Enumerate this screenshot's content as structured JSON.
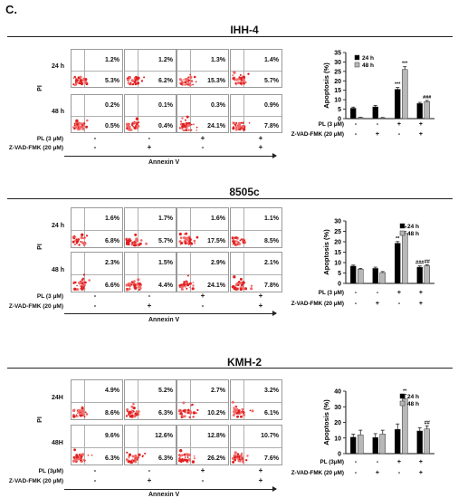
{
  "panel_label": "C.",
  "panels": [
    {
      "title": "IHH-4",
      "row_labels": [
        "24 h",
        "48 h"
      ],
      "y_axis": "PI",
      "x_axis": "Annexin V",
      "flow_percent": [
        [
          [
            "1.2%",
            "5.3%"
          ],
          [
            "1.2%",
            "6.2%"
          ],
          [
            "1.3%",
            "15.3%"
          ],
          [
            "1.4%",
            "5.7%"
          ]
        ],
        [
          [
            "0.2%",
            "0.5%"
          ],
          [
            "0.1%",
            "0.4%"
          ],
          [
            "0.3%",
            "24.1%"
          ],
          [
            "0.9%",
            "7.8%"
          ]
        ]
      ],
      "treatments": [
        {
          "label": "PL (3 μM)",
          "signs": [
            "-",
            "-",
            "+",
            "+"
          ]
        },
        {
          "label": "Z-VAD-FMK (20 μM)",
          "signs": [
            "-",
            "+",
            "-",
            "+"
          ]
        }
      ]
    },
    {
      "title": "8505c",
      "row_labels": [
        "24 h",
        "48 h"
      ],
      "y_axis": "PI",
      "x_axis": "Annexin V",
      "flow_percent": [
        [
          [
            "1.6%",
            "6.8%"
          ],
          [
            "1.7%",
            "5.7%"
          ],
          [
            "1.6%",
            "17.5%"
          ],
          [
            "1.1%",
            "8.5%"
          ]
        ],
        [
          [
            "2.3%",
            "6.6%"
          ],
          [
            "1.5%",
            "4.4%"
          ],
          [
            "2.9%",
            "24.1%"
          ],
          [
            "2.1%",
            "7.8%"
          ]
        ]
      ],
      "treatments": [
        {
          "label": "PL (3 μM)",
          "signs": [
            "-",
            "-",
            "+",
            "+"
          ]
        },
        {
          "label": "Z-VAD-FMK (20 μM)",
          "signs": [
            "-",
            "+",
            "-",
            "+"
          ]
        }
      ]
    },
    {
      "title": "KMH-2",
      "row_labels": [
        "24H",
        "48H"
      ],
      "y_axis": "PI",
      "x_axis": "Annexin V",
      "flow_percent": [
        [
          [
            "4.9%",
            "8.6%"
          ],
          [
            "5.2%",
            "6.3%"
          ],
          [
            "2.7%",
            "10.2%"
          ],
          [
            "3.2%",
            "6.1%"
          ]
        ],
        [
          [
            "9.6%",
            "6.3%"
          ],
          [
            "12.6%",
            "6.3%"
          ],
          [
            "12.8%",
            "26.2%"
          ],
          [
            "10.7%",
            "7.6%"
          ]
        ]
      ],
      "treatments": [
        {
          "label": "PL (3μM)",
          "signs": [
            "-",
            "-",
            "+",
            "+"
          ]
        },
        {
          "label": "Z-VAD-FMK (20 μM)",
          "signs": [
            "-",
            "+",
            "-",
            "+"
          ]
        }
      ]
    }
  ],
  "chart_data": [
    {
      "type": "bar",
      "title": "",
      "xlabel": "",
      "ylabel": "Apoptosis (%)",
      "ylim": [
        0,
        35
      ],
      "yticks": [
        "0",
        "5",
        "10",
        "15",
        "20",
        "25",
        "30",
        "35"
      ],
      "legend_position": "top-left",
      "categories": [
        "1",
        "2",
        "3",
        "4"
      ],
      "series": [
        {
          "name": "24 h",
          "color": "#000000",
          "values": [
            5.5,
            6.2,
            15.5,
            8.0
          ],
          "errors": [
            0.6,
            0.8,
            1.0,
            0.6
          ],
          "annotations": [
            "",
            "",
            "***",
            ""
          ]
        },
        {
          "name": "48 h",
          "color": "#b8b8b8",
          "values": [
            0.5,
            0.4,
            26.0,
            9.0
          ],
          "errors": [
            0.2,
            0.2,
            1.5,
            0.6
          ],
          "annotations": [
            "",
            "",
            "***",
            "###"
          ]
        }
      ],
      "treatments": [
        {
          "label": "PL (3 μM)",
          "signs": [
            "-",
            "-",
            "+",
            "+"
          ]
        },
        {
          "label": "Z-VAD-FMK (20 μM)",
          "signs": [
            "-",
            "+",
            "-",
            "+"
          ]
        }
      ]
    },
    {
      "type": "bar",
      "title": "",
      "xlabel": "",
      "ylabel": "Apoptosis (%)",
      "ylim": [
        0,
        30
      ],
      "yticks": [
        "0",
        "5",
        "10",
        "15",
        "20",
        "25",
        "30"
      ],
      "legend_position": "top-right",
      "categories": [
        "1",
        "2",
        "3",
        "4"
      ],
      "series": [
        {
          "name": "24 h",
          "color": "#000000",
          "values": [
            8.3,
            7.2,
            19.3,
            7.8
          ],
          "errors": [
            0.5,
            0.6,
            0.8,
            0.6
          ],
          "annotations": [
            "",
            "",
            "**",
            "###"
          ]
        },
        {
          "name": "48 h",
          "color": "#b8b8b8",
          "values": [
            6.8,
            5.2,
            24.0,
            8.5
          ],
          "errors": [
            0.4,
            0.5,
            0.9,
            0.5
          ],
          "annotations": [
            "",
            "",
            "**",
            "##"
          ]
        }
      ],
      "treatments": [
        {
          "label": "PL (3 μM)",
          "signs": [
            "-",
            "-",
            "+",
            "+"
          ]
        },
        {
          "label": "Z-VAD-FMK (20 μM)",
          "signs": [
            "-",
            "+",
            "-",
            "+"
          ]
        }
      ]
    },
    {
      "type": "bar",
      "title": "",
      "xlabel": "",
      "ylabel": "Apoptosis (%)",
      "ylim": [
        0,
        40
      ],
      "yticks": [
        "0",
        "10",
        "20",
        "30",
        "40"
      ],
      "legend_position": "top-right",
      "categories": [
        "1",
        "2",
        "3",
        "4"
      ],
      "series": [
        {
          "name": "24 h",
          "color": "#000000",
          "values": [
            10.5,
            10.3,
            15.5,
            14.5
          ],
          "errors": [
            2.0,
            2.5,
            3.5,
            2.0
          ],
          "annotations": [
            "",
            "",
            "",
            ""
          ]
        },
        {
          "name": "48 h",
          "color": "#b8b8b8",
          "values": [
            12.0,
            12.5,
            35.0,
            15.8
          ],
          "errors": [
            3.0,
            2.5,
            3.0,
            2.0
          ],
          "annotations": [
            "",
            "",
            "**",
            "##"
          ]
        }
      ],
      "treatments": [
        {
          "label": "PL (3μM)",
          "signs": [
            "-",
            "-",
            "+",
            "+"
          ]
        },
        {
          "label": "Z-VAD-FMK (20 μM)",
          "signs": [
            "-",
            "+",
            "-",
            "+"
          ]
        }
      ]
    }
  ]
}
